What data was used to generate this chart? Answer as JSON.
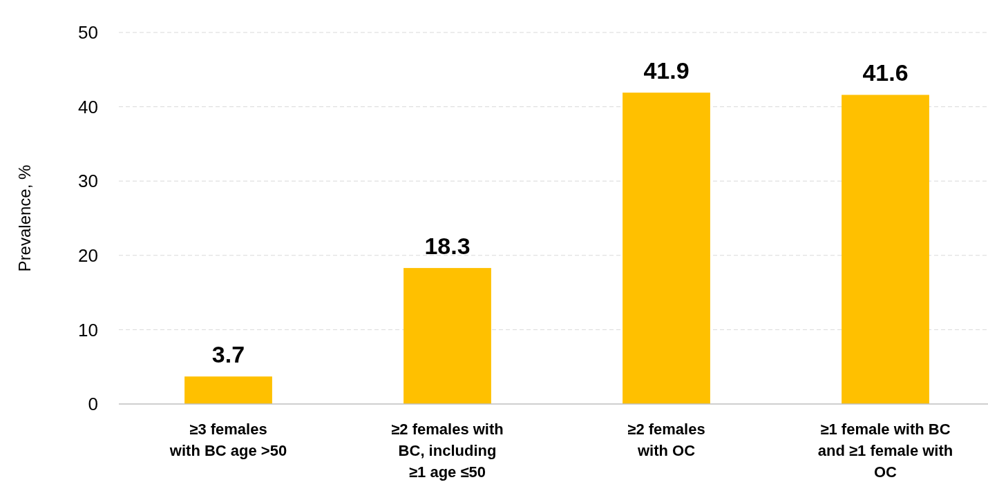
{
  "chart_data": {
    "type": "bar",
    "ylabel": "Prevalence, %",
    "categories": [
      "≥3 females\nwith BC age >50",
      "≥2 females with\nBC, including\n≥1 age ≤50",
      "≥2 females\nwith OC",
      "≥1 female with BC\nand ≥1 female with\nOC"
    ],
    "values": [
      3.7,
      18.3,
      41.9,
      41.6
    ],
    "color": "#ffc000",
    "ylim": [
      0,
      50
    ],
    "yticks": [
      0,
      10,
      20,
      30,
      40,
      50
    ],
    "grid": "y",
    "data_labels": true
  }
}
